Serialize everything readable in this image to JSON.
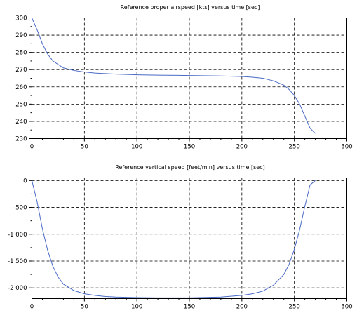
{
  "chart_data": [
    {
      "type": "line",
      "title": "Reference proper airspeed [kts] versus time [sec]",
      "xlim": [
        0,
        300
      ],
      "ylim": [
        230,
        300
      ],
      "x_ticks": [
        0,
        50,
        100,
        150,
        200,
        250,
        300
      ],
      "x_tick_labels": [
        "0",
        "50",
        "100",
        "150",
        "200",
        "250",
        "300"
      ],
      "y_ticks": [
        230,
        240,
        250,
        260,
        270,
        280,
        290,
        300
      ],
      "y_tick_labels": [
        "230",
        "240",
        "250",
        "260",
        "270",
        "280",
        "290",
        "300"
      ],
      "grid": true,
      "series_color": "#4a6ac6",
      "series": [
        {
          "x": [
            0,
            5,
            10,
            15,
            20,
            30,
            40,
            50,
            60,
            80,
            100,
            120,
            150,
            180,
            200,
            210,
            220,
            230,
            240,
            245,
            250,
            255,
            260,
            265,
            270
          ],
          "y": [
            300,
            293,
            285,
            279,
            275,
            271,
            269.5,
            268.6,
            268,
            267.4,
            267,
            266.8,
            266.6,
            266.3,
            266,
            265.6,
            265,
            263.5,
            261,
            258.5,
            255,
            250,
            243,
            236,
            233
          ]
        }
      ]
    },
    {
      "type": "line",
      "title": "Reference vertical speed [feet/min] versus time [sec]",
      "xlim": [
        0,
        300
      ],
      "ylim": [
        -2200,
        50
      ],
      "x_ticks": [
        0,
        50,
        100,
        150,
        200,
        250,
        300
      ],
      "x_tick_labels": [
        "0",
        "50",
        "100",
        "150",
        "200",
        "250",
        "300"
      ],
      "y_ticks": [
        0,
        -500,
        -1000,
        -1500,
        -2000
      ],
      "y_tick_labels": [
        "0",
        "-500",
        "-1 000",
        "-1 500",
        "-2 000"
      ],
      "grid": true,
      "series_color": "#4a6ac6",
      "series": [
        {
          "x": [
            0,
            5,
            10,
            15,
            20,
            25,
            30,
            40,
            50,
            60,
            70,
            80,
            100,
            120,
            150,
            180,
            200,
            210,
            220,
            230,
            240,
            245,
            250,
            255,
            260,
            265,
            270
          ],
          "y": [
            0,
            -400,
            -900,
            -1300,
            -1600,
            -1800,
            -1930,
            -2050,
            -2110,
            -2140,
            -2160,
            -2170,
            -2180,
            -2185,
            -2185,
            -2170,
            -2140,
            -2110,
            -2060,
            -1950,
            -1750,
            -1560,
            -1280,
            -920,
            -480,
            -80,
            0
          ]
        }
      ]
    }
  ]
}
